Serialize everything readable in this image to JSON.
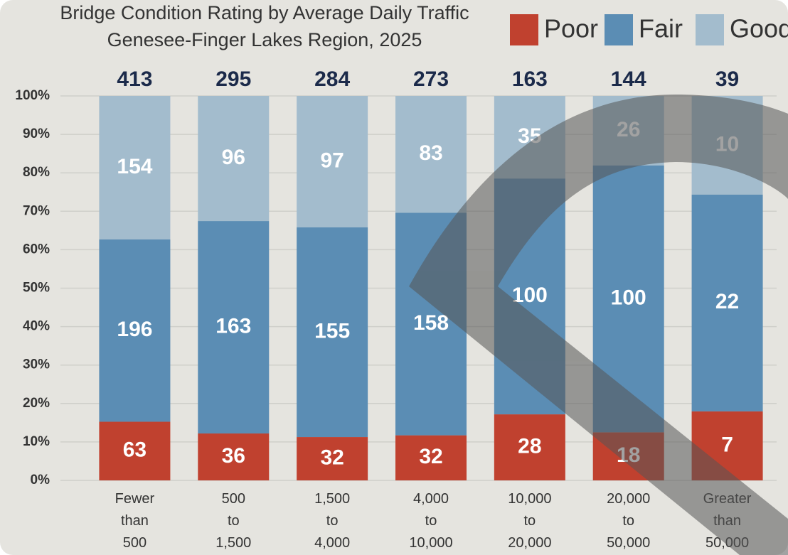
{
  "chart_data": {
    "type": "stacked_percent_bar",
    "title": "Bridge Condition Rating by Average Daily Traffic",
    "subtitle": "Genesee-Finger Lakes Region, 2025",
    "categories": [
      "Fewer than 500",
      "500 to 1,500",
      "1,500 to 4,000",
      "4,000 to 10,000",
      "10,000 to 20,000",
      "20,000 to 50,000",
      "Greater than 50,000"
    ],
    "totals": [
      413,
      295,
      284,
      273,
      163,
      144,
      39
    ],
    "series": [
      {
        "name": "Poor",
        "color": "#c0412f",
        "values": [
          63,
          36,
          32,
          32,
          28,
          18,
          7
        ]
      },
      {
        "name": "Fair",
        "color": "#5b8db4",
        "values": [
          196,
          163,
          155,
          158,
          100,
          100,
          22
        ]
      },
      {
        "name": "Good",
        "color": "#a3bccd",
        "values": [
          154,
          96,
          97,
          83,
          35,
          26,
          10
        ]
      }
    ],
    "ylim": [
      0,
      100
    ],
    "yticks": [
      {
        "value": 0,
        "label": "0%"
      },
      {
        "value": 10,
        "label": "10%"
      },
      {
        "value": 20,
        "label": "20%"
      },
      {
        "value": 30,
        "label": "30%"
      },
      {
        "value": 40,
        "label": "40%"
      },
      {
        "value": 50,
        "label": "50%"
      },
      {
        "value": 60,
        "label": "60%"
      },
      {
        "value": 70,
        "label": "70%"
      },
      {
        "value": 80,
        "label": "80%"
      },
      {
        "value": 90,
        "label": "90%"
      },
      {
        "value": 100,
        "label": "100%"
      }
    ],
    "grid": true,
    "legend": "top-right"
  }
}
